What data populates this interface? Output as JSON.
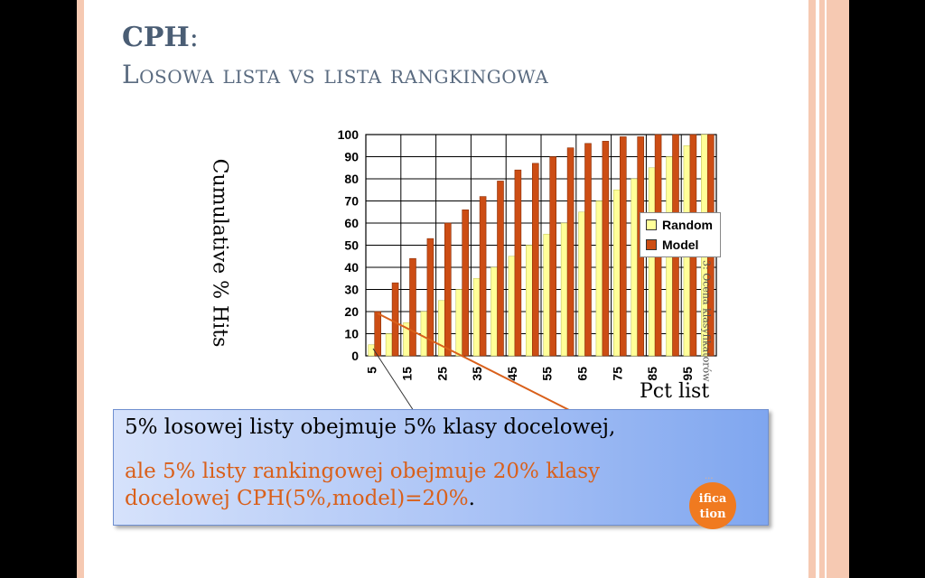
{
  "slide": {
    "title_main": "CPH",
    "title_colon": ":",
    "subtitle": "Losowa lista vs lista rangkingowa",
    "side_text": "Wykład 3: Ocena klasyfikatorów",
    "badge": {
      "line1": "ifica",
      "line2": "tion"
    },
    "dots": "..."
  },
  "chart_data": {
    "type": "bar",
    "categories": [
      "5",
      "10",
      "15",
      "20",
      "25",
      "30",
      "35",
      "40",
      "45",
      "50",
      "55",
      "60",
      "65",
      "70",
      "75",
      "80",
      "85",
      "90",
      "95",
      "100"
    ],
    "x_tick_labels_shown": [
      "5",
      "15",
      "25",
      "35",
      "45",
      "55",
      "65",
      "75",
      "85",
      "95"
    ],
    "series": [
      {
        "name": "Random",
        "values": [
          5,
          10,
          15,
          20,
          25,
          30,
          35,
          40,
          45,
          50,
          55,
          60,
          65,
          70,
          75,
          80,
          85,
          90,
          95,
          100
        ]
      },
      {
        "name": "Model",
        "values": [
          20,
          33,
          44,
          53,
          60,
          66,
          72,
          79,
          84,
          87,
          90,
          94,
          96,
          97,
          99,
          99,
          100,
          100,
          100,
          100
        ]
      }
    ],
    "ylabel": "Cumulative % Hits",
    "xlabel": "Pct list",
    "ylim": [
      0,
      100
    ],
    "y_ticks": [
      "0",
      "10",
      "20",
      "30",
      "40",
      "50",
      "60",
      "70",
      "80",
      "90",
      "100"
    ],
    "grid": true,
    "legend": "right",
    "colors": {
      "Random": "#ffff99",
      "Model": "#cc4d14"
    }
  },
  "callout": {
    "line1": "5% losowej listy obejmuje 5% klasy docelowej,",
    "line2a": "ale 5% listy rankingowej obejmuje 20% klasy",
    "line2b": "docelowej  CPH(5%,model)=20%",
    "line2_end": "."
  }
}
